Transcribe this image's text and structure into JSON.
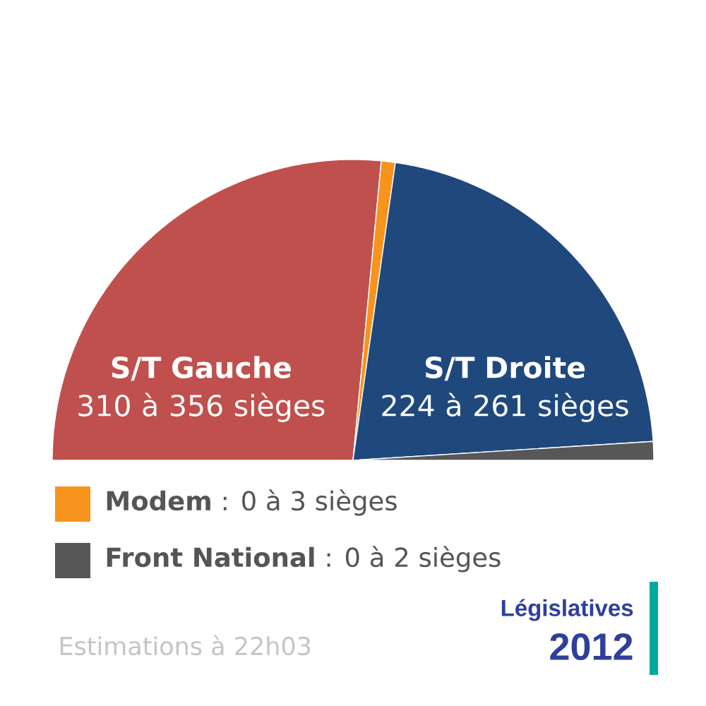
{
  "chart_data": {
    "type": "pie",
    "title": "Législatives",
    "subtitle": "2012",
    "annotations": [
      "Estimations à 22h03"
    ],
    "categories": [
      "**S/T Gauche**\n310 à 356 sièges",
      "**Modem** : 0 à 3 sièges",
      "**S/T Droite**\n224 à 261 sièges",
      "**Front National** : 0 à 2 sièges"
    ],
    "values": [
      53,
      1.5,
      43.5,
      2
    ],
    "colors": [
      "#c0504d",
      "#f7941d",
      "#1f497d",
      "#575757"
    ],
    "legend": "bottom"
  }
}
